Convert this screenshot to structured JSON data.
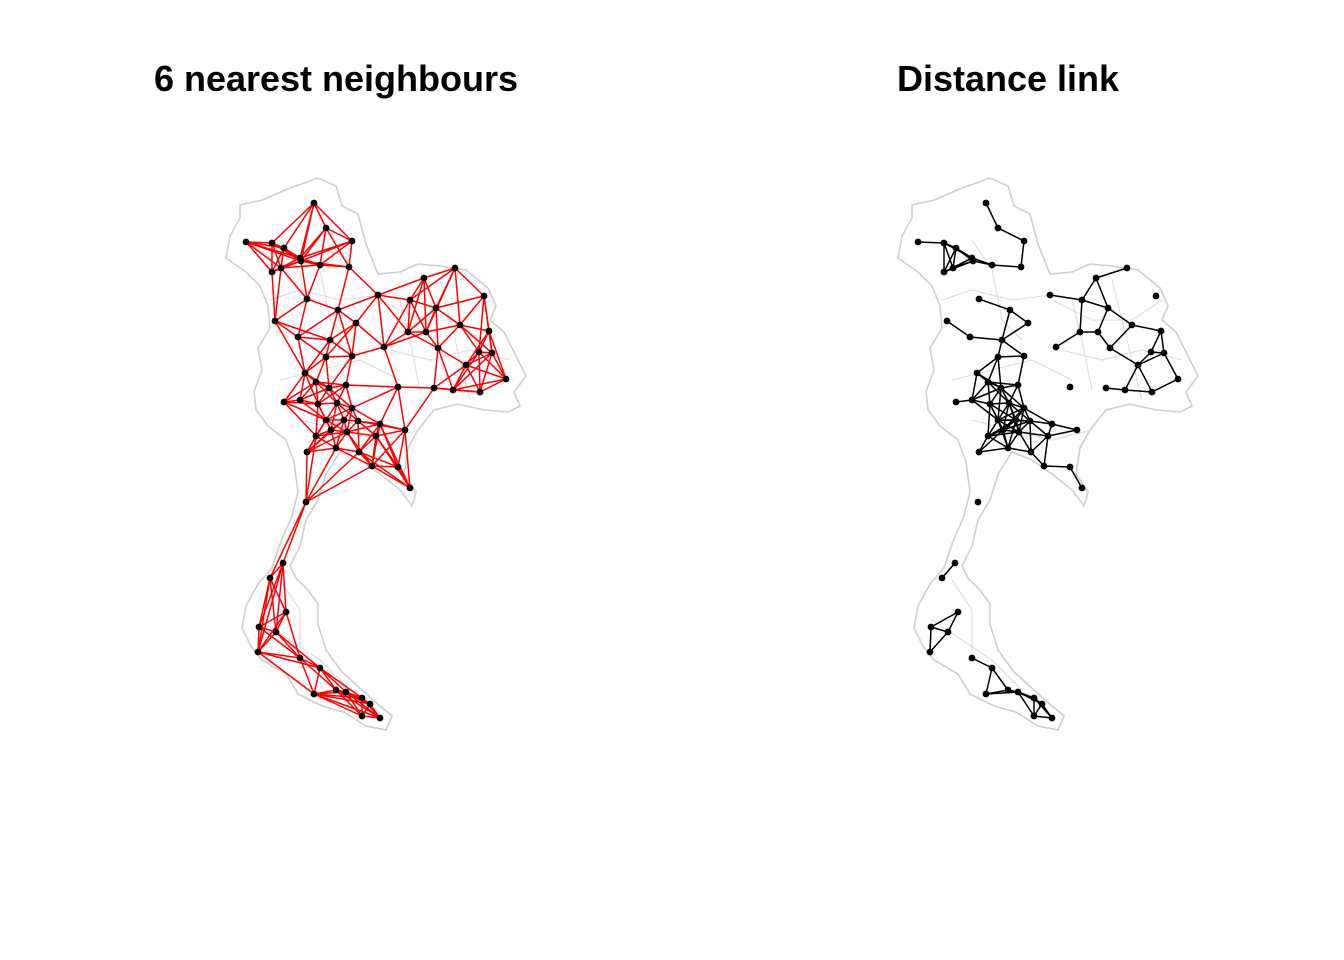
{
  "panels": [
    {
      "id": "knn",
      "title": "6 nearest neighbours",
      "link_color": "#ff0000",
      "node_color": "#000000"
    },
    {
      "id": "dist",
      "title": "Distance link",
      "link_color": "#000000",
      "node_color": "#000000"
    }
  ],
  "colors": {
    "boundary": "#cccccc",
    "background": "#ffffff"
  }
}
